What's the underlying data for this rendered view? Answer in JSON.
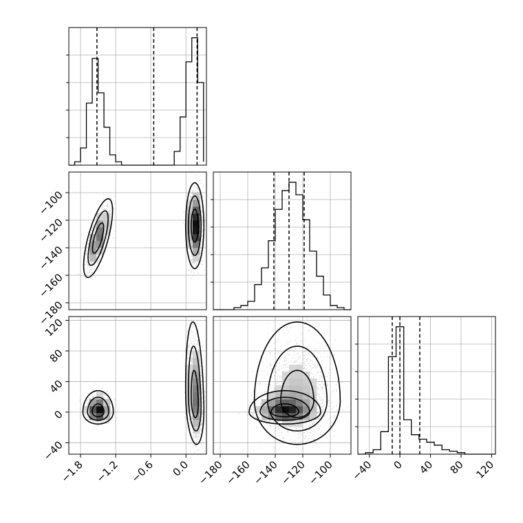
{
  "chart_data": {
    "type": "corner",
    "grid": true,
    "parameters": [
      {
        "range": [
          -2.0,
          0.35
        ],
        "ticks": [
          -1.8,
          -1.2,
          -0.6,
          0.0
        ],
        "tick_labels": [
          "−1.8",
          "−1.2",
          "−0.6",
          "0.0"
        ],
        "quantiles": [
          -1.52,
          -0.55,
          0.19
        ],
        "hist_bins": [
          -2.0,
          -1.9,
          -1.8,
          -1.7,
          -1.6,
          -1.5,
          -1.4,
          -1.3,
          -1.2,
          -1.1,
          -1.0,
          -0.9,
          -0.8,
          -0.7,
          -0.6,
          -0.5,
          -0.4,
          -0.3,
          -0.2,
          -0.1,
          0.0,
          0.1,
          0.2,
          0.3
        ],
        "hist_counts": [
          0,
          1,
          5,
          18,
          31,
          21,
          11,
          3,
          1,
          0,
          0,
          0,
          0,
          0,
          0,
          0,
          0,
          0,
          4,
          14,
          30,
          37,
          24,
          1
        ]
      },
      {
        "range": [
          -185,
          -85
        ],
        "ticks": [
          -180,
          -160,
          -140,
          -120,
          -100
        ],
        "tick_labels": [
          "−180",
          "−160",
          "−140",
          "−120",
          "−100"
        ],
        "quantiles": [
          -141,
          -130,
          -119
        ],
        "hist_bins": [
          -185,
          -180,
          -175,
          -170,
          -165,
          -160,
          -155,
          -150,
          -145,
          -140,
          -135,
          -130,
          -125,
          -120,
          -115,
          -110,
          -105,
          -100,
          -95,
          -90,
          -85
        ],
        "hist_counts": [
          0,
          0,
          0,
          1,
          2,
          4,
          12,
          20,
          33,
          48,
          57,
          61,
          55,
          43,
          28,
          16,
          7,
          2,
          1,
          0
        ]
      },
      {
        "range": [
          -55,
          125
        ],
        "ticks": [
          -40,
          0,
          40,
          80,
          120
        ],
        "tick_labels": [
          "−40",
          "0",
          "40",
          "80",
          "120"
        ],
        "quantiles": [
          -10,
          0,
          26
        ],
        "hist_bins": [
          -55,
          -45,
          -35,
          -25,
          -15,
          -5,
          5,
          15,
          25,
          35,
          45,
          55,
          65,
          75,
          85,
          95,
          105,
          115,
          125
        ],
        "hist_counts": [
          0,
          1,
          3,
          15,
          65,
          85,
          23,
          13,
          10,
          8,
          6,
          3,
          2,
          1,
          0,
          0,
          0,
          0
        ]
      }
    ],
    "joint_panels": [
      {
        "x_param": 0,
        "y_param": 1,
        "modes": [
          {
            "cx": -1.5,
            "cy": -133,
            "sx": 0.095,
            "sy": 11,
            "rho": 0.7,
            "weight": 0.45
          },
          {
            "cx": 0.15,
            "cy": -124,
            "sx": 0.06,
            "sy": 12,
            "rho": 0.0,
            "weight": 0.55
          }
        ]
      },
      {
        "x_param": 0,
        "y_param": 2,
        "modes": [
          {
            "cx": -1.5,
            "cy": 0,
            "sx": 0.1,
            "sy": 6,
            "rho": 0.0,
            "weight": 0.45
          },
          {
            "cx": 0.15,
            "cy": 15,
            "sx": 0.06,
            "sy": 22,
            "rho": -0.2,
            "weight": 0.55
          }
        ]
      },
      {
        "x_param": 1,
        "y_param": 2,
        "modes": [
          {
            "cx": -133,
            "cy": 0,
            "sx": 10,
            "sy": 6,
            "rho": 0.0,
            "weight": 0.45
          },
          {
            "cx": -124,
            "cy": 15,
            "sx": 12,
            "sy": 22,
            "rho": 0.0,
            "weight": 0.55
          }
        ]
      }
    ]
  }
}
